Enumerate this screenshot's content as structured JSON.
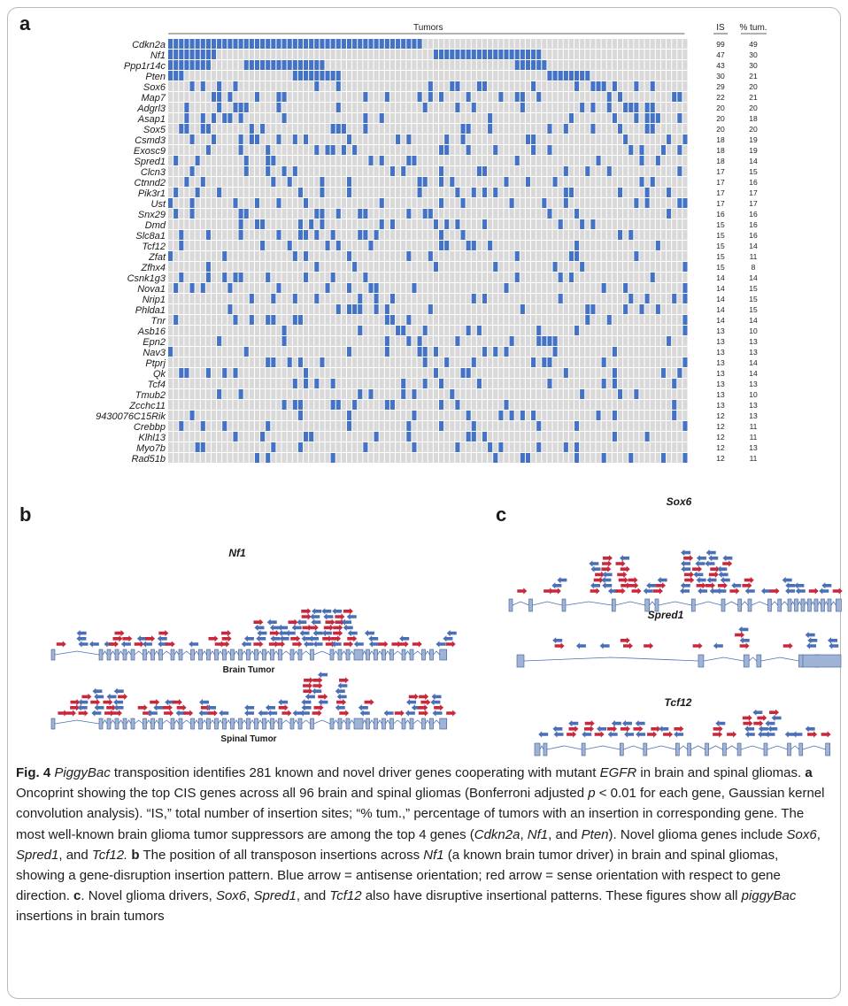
{
  "panel_labels": {
    "a": "a",
    "b": "b",
    "c": "c"
  },
  "chart_data": {
    "type": "heatmap",
    "header": {
      "tumors": "Tumors",
      "is": "IS",
      "pct": "% tum."
    },
    "num_tumors": 96,
    "genes": [
      {
        "name": "Cdkn2a",
        "is": 99,
        "pct": 49
      },
      {
        "name": "Nf1",
        "is": 47,
        "pct": 30
      },
      {
        "name": "Ppp1r14c",
        "is": 43,
        "pct": 30
      },
      {
        "name": "Pten",
        "is": 30,
        "pct": 21
      },
      {
        "name": "Sox6",
        "is": 29,
        "pct": 20
      },
      {
        "name": "Map7",
        "is": 22,
        "pct": 21
      },
      {
        "name": "Adgrl3",
        "is": 20,
        "pct": 20
      },
      {
        "name": "Asap1",
        "is": 20,
        "pct": 18
      },
      {
        "name": "Sox5",
        "is": 20,
        "pct": 20
      },
      {
        "name": "Csmd3",
        "is": 18,
        "pct": 19
      },
      {
        "name": "Exosc9",
        "is": 18,
        "pct": 19
      },
      {
        "name": "Spred1",
        "is": 18,
        "pct": 14
      },
      {
        "name": "Clcn3",
        "is": 17,
        "pct": 15
      },
      {
        "name": "Ctnnd2",
        "is": 17,
        "pct": 16
      },
      {
        "name": "Pik3r1",
        "is": 17,
        "pct": 17
      },
      {
        "name": "Ust",
        "is": 17,
        "pct": 17
      },
      {
        "name": "Snx29",
        "is": 16,
        "pct": 16
      },
      {
        "name": "Dmd",
        "is": 15,
        "pct": 16
      },
      {
        "name": "Slc8a1",
        "is": 15,
        "pct": 16
      },
      {
        "name": "Tcf12",
        "is": 15,
        "pct": 14
      },
      {
        "name": "Zfat",
        "is": 15,
        "pct": 11
      },
      {
        "name": "Zfhx4",
        "is": 15,
        "pct": 8
      },
      {
        "name": "Csnk1g3",
        "is": 14,
        "pct": 14
      },
      {
        "name": "Nova1",
        "is": 14,
        "pct": 15
      },
      {
        "name": "Nrip1",
        "is": 14,
        "pct": 15
      },
      {
        "name": "Phlda1",
        "is": 14,
        "pct": 15
      },
      {
        "name": "Tnr",
        "is": 14,
        "pct": 14
      },
      {
        "name": "Asb16",
        "is": 13,
        "pct": 10
      },
      {
        "name": "Epn2",
        "is": 13,
        "pct": 13
      },
      {
        "name": "Nav3",
        "is": 13,
        "pct": 13
      },
      {
        "name": "Ptprj",
        "is": 13,
        "pct": 14
      },
      {
        "name": "Qk",
        "is": 13,
        "pct": 14
      },
      {
        "name": "Tcf4",
        "is": 13,
        "pct": 13
      },
      {
        "name": "Tmub2",
        "is": 13,
        "pct": 10
      },
      {
        "name": "Zcchc11",
        "is": 13,
        "pct": 13
      },
      {
        "name": "9430076C15Rik",
        "is": 12,
        "pct": 13
      },
      {
        "name": "Crebbp",
        "is": 12,
        "pct": 11
      },
      {
        "name": "Klhl13",
        "is": 12,
        "pct": 11
      },
      {
        "name": "Myo7b",
        "is": 12,
        "pct": 13
      },
      {
        "name": "Rad51b",
        "is": 12,
        "pct": 11
      }
    ],
    "colors": {
      "mutated": "#4472c4",
      "background": "#d9d9d9"
    }
  },
  "gene_panels": {
    "nf1_title": "Nf1",
    "brain_label": "Brain Tumor",
    "spinal_label": "Spinal Tumor",
    "sox6_title": "Sox6",
    "spred1_title": "Spred1",
    "tcf12_title": "Tcf12",
    "arrow_colors": {
      "antisense": "#4a6fb5",
      "sense": "#c8283c"
    },
    "exon_color": "#9fb3d6"
  },
  "caption": {
    "fig": "Fig. 4",
    "t1": " ",
    "i1": "PiggyBac",
    "t2": " transposition identifies 281 known and novel driver genes cooperating with mutant ",
    "i2": "EGFR",
    "t3": " in brain and spinal gliomas. ",
    "b1": "a",
    "t4": " Oncoprint showing the top CIS genes across all 96 brain and spinal gliomas (Bonferroni adjusted ",
    "i3": "p",
    "t5": " < 0.01 for each gene, Gaussian kernel convolution analysis). “IS,” total number of insertion sites; “% tum.,” percentage of tumors with an insertion in corresponding gene. The most well-known brain glioma tumor suppressors are among the top 4 genes (",
    "i4": "Cdkn2a",
    "t6": ", ",
    "i5": "Nf1",
    "t7": ", and ",
    "i6": "Pten",
    "t8": "). Novel glioma genes include ",
    "i7": "Sox6",
    "t9": ", ",
    "i8": "Spred1",
    "t10": ", and ",
    "i9": "Tcf12.",
    "t11": " ",
    "b2": "b",
    "t12": " The position of all transposon insertions across ",
    "i10": "Nf1",
    "t13": " (a known brain tumor driver) in brain and spinal gliomas, showing a gene-disruption insertion pattern. Blue arrow = antisense orientation; red arrow = sense orientation with respect to gene direction. ",
    "b3": "c",
    "t14": ". Novel glioma drivers, ",
    "i11": "Sox6",
    "t15": ", ",
    "i12": "Spred1",
    "t16": ", and ",
    "i13": "Tcf12",
    "t17": " also have disruptive insertional patterns. These figures show all ",
    "i14": "piggyBac",
    "t18": " insertions in brain tumors"
  }
}
